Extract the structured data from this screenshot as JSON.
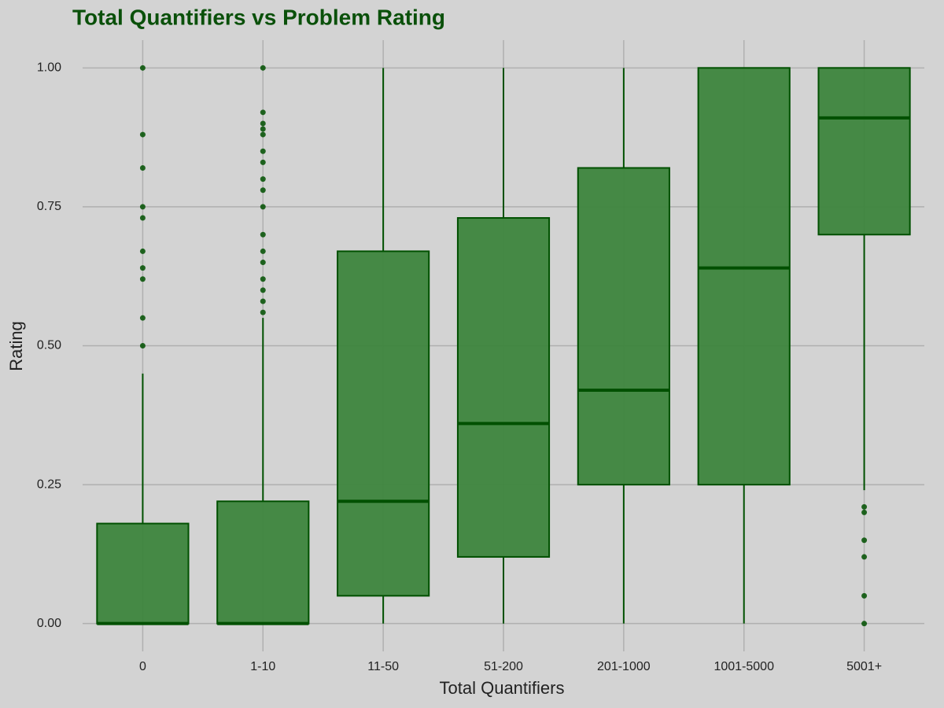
{
  "chart_data": {
    "type": "box",
    "title": "Total Quantifiers vs Problem Rating",
    "x_label": "Total Quantifiers",
    "y_label": "Rating",
    "categories": [
      "0",
      "1-10",
      "11-50",
      "51-200",
      "201-1000",
      "1001-5000",
      "5001+"
    ],
    "boxes": [
      {
        "low": 0,
        "q1": 0,
        "median": 0,
        "q3": 0.18,
        "high": 0.45,
        "outliers": [
          0.5,
          0.55,
          0.62,
          0.64,
          0.67,
          0.73,
          0.75,
          0.82,
          0.88,
          1.0
        ]
      },
      {
        "low": 0,
        "q1": 0,
        "median": 0,
        "q3": 0.22,
        "high": 0.55,
        "outliers": [
          0.56,
          0.58,
          0.6,
          0.62,
          0.65,
          0.67,
          0.7,
          0.75,
          0.78,
          0.8,
          0.83,
          0.85,
          0.88,
          0.89,
          0.9,
          0.92,
          1.0
        ]
      },
      {
        "low": 0,
        "q1": 0.05,
        "median": 0.22,
        "q3": 0.67,
        "high": 1.0,
        "outliers": []
      },
      {
        "low": 0,
        "q1": 0.12,
        "median": 0.36,
        "q3": 0.73,
        "high": 1.0,
        "outliers": []
      },
      {
        "low": 0,
        "q1": 0.25,
        "median": 0.42,
        "q3": 0.82,
        "high": 1.0,
        "outliers": []
      },
      {
        "low": 0,
        "q1": 0.25,
        "median": 0.64,
        "q3": 1.0,
        "high": 1.0,
        "outliers": []
      },
      {
        "low": 0.24,
        "q1": 0.7,
        "median": 0.91,
        "q3": 1.0,
        "high": 1.0,
        "outliers": [
          0,
          0.05,
          0.12,
          0.15,
          0.2,
          0.21
        ]
      }
    ],
    "color": "#3d853d",
    "line_color": "#005000",
    "ylim": [
      -0.05,
      1.05
    ],
    "yticks": [
      {
        "value": 0,
        "label": "0.00"
      },
      {
        "value": 0.25,
        "label": "0.25"
      },
      {
        "value": 0.5,
        "label": "0.50"
      },
      {
        "value": 0.75,
        "label": "0.75"
      },
      {
        "value": 1,
        "label": "1.00"
      }
    ],
    "grid": true
  }
}
